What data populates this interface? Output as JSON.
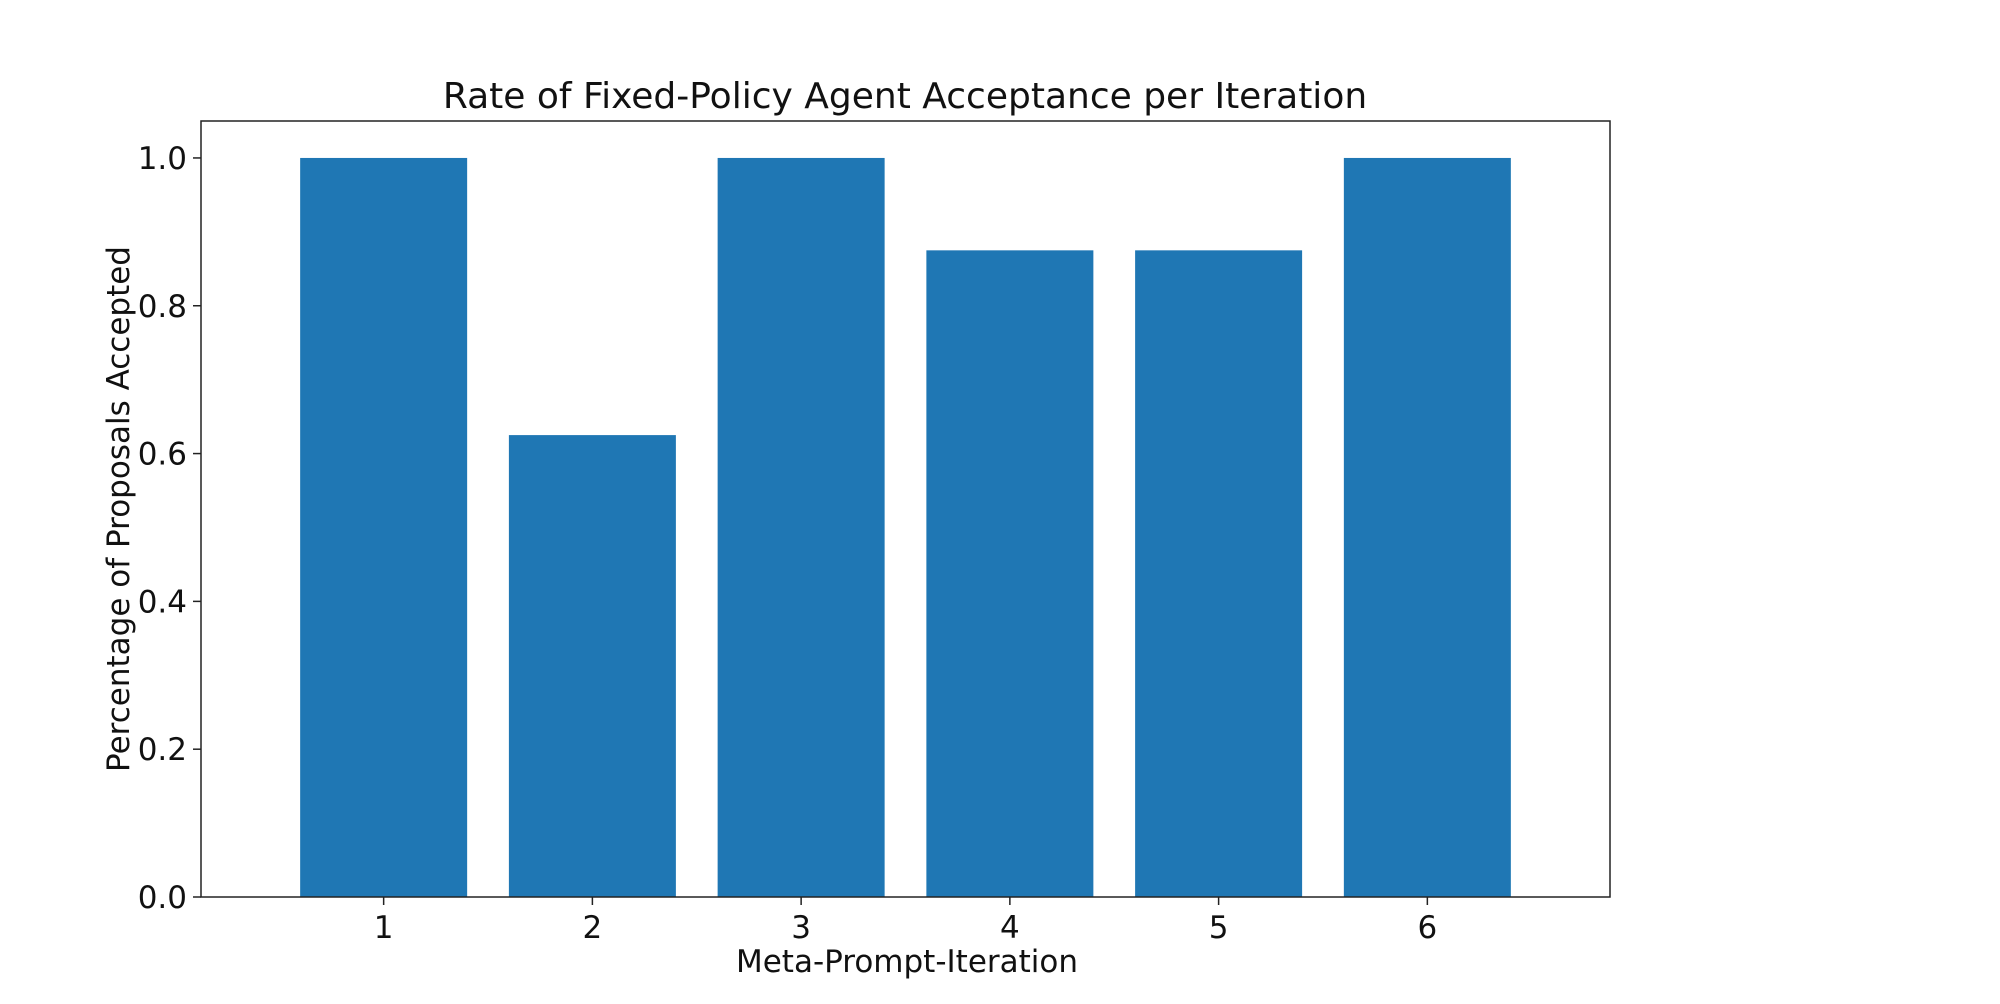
{
  "chart_data": {
    "type": "bar",
    "title": "Rate of Fixed-Policy Agent Acceptance per Iteration",
    "xlabel": "Meta-Prompt-Iteration",
    "ylabel": "Percentage of Proposals Accepted",
    "categories": [
      "1",
      "2",
      "3",
      "4",
      "5",
      "6"
    ],
    "values": [
      1.0,
      0.625,
      1.0,
      0.875,
      0.875,
      1.0
    ],
    "ylim": [
      0,
      1.05
    ],
    "yticks": [
      0.0,
      0.2,
      0.4,
      0.6,
      0.8,
      1.0
    ],
    "ytick_labels": [
      "0.0",
      "0.2",
      "0.4",
      "0.6",
      "0.8",
      "1.0"
    ],
    "grid": false,
    "bar_color": "#1f77b4"
  }
}
